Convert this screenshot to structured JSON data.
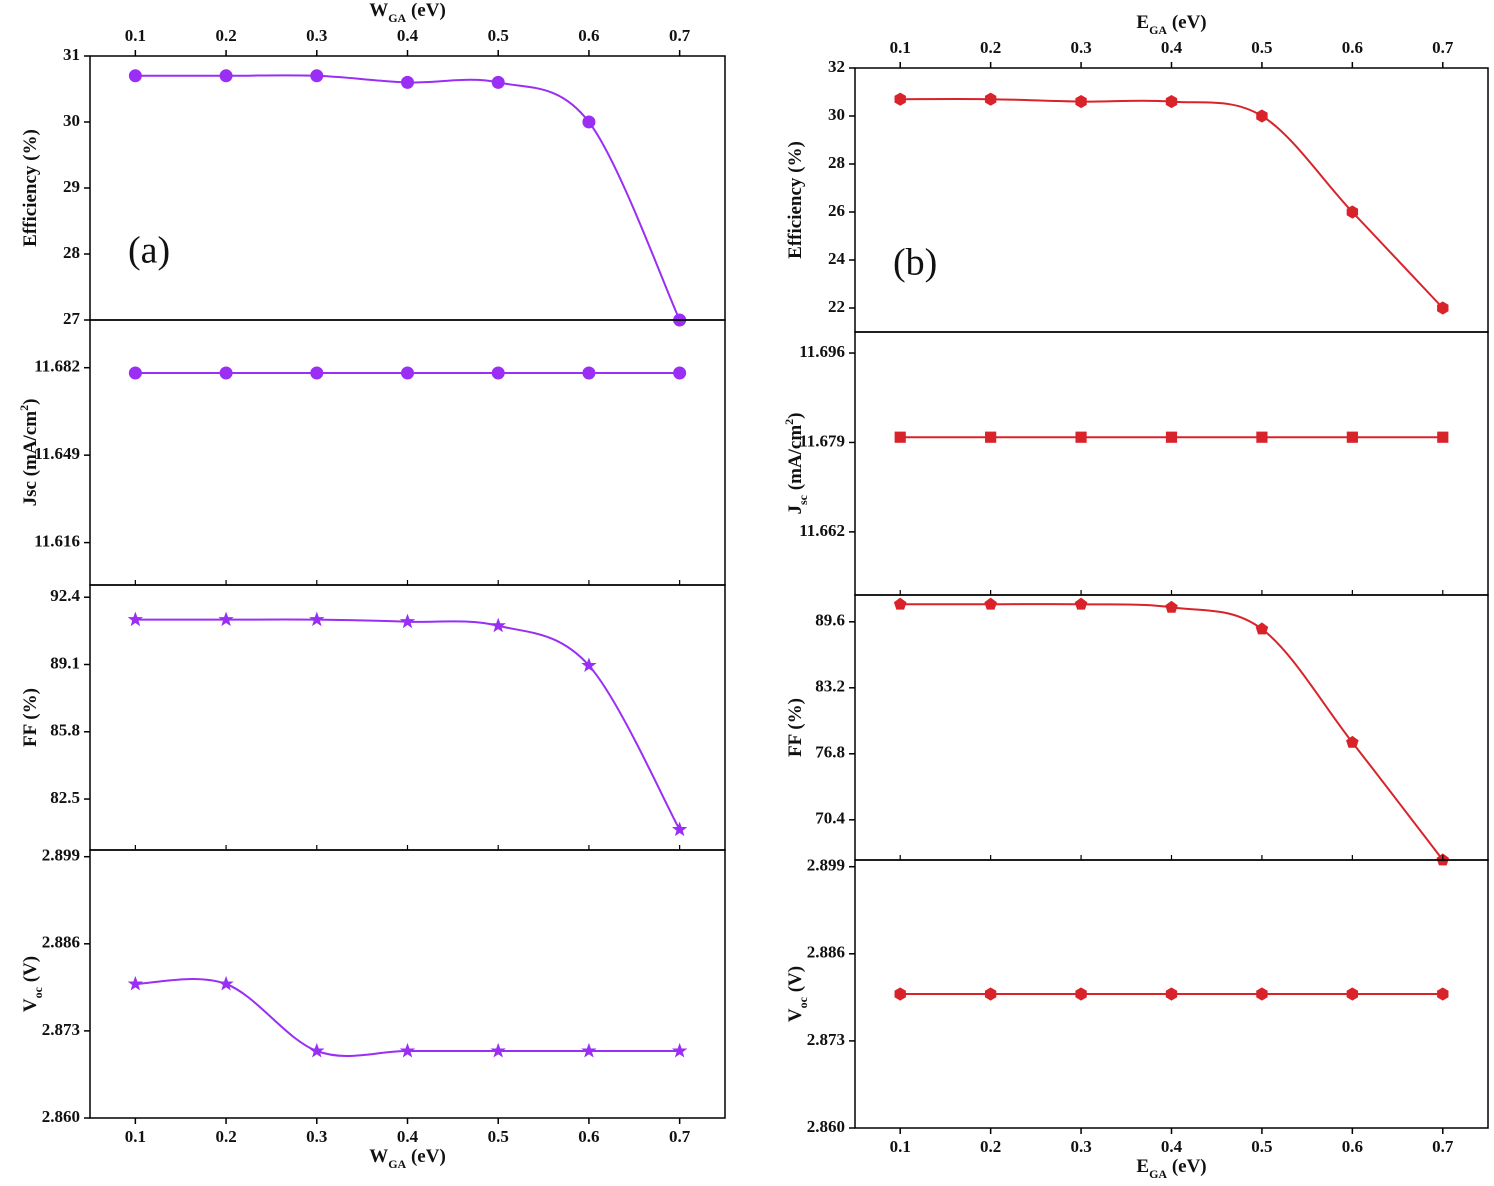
{
  "chart_data": [
    {
      "type": "line",
      "panel_label": "(a)",
      "top_xlabel": [
        {
          "text": "W"
        },
        {
          "text": "GA",
          "shift": "sub"
        },
        {
          "text": " (eV)"
        }
      ],
      "xtick_labels": "top",
      "ylabel": [
        {
          "text": "Efficiency (%)"
        }
      ],
      "x": [
        0.1,
        0.2,
        0.3,
        0.4,
        0.5,
        0.6,
        0.7
      ],
      "values": [
        30.7,
        30.7,
        30.7,
        30.6,
        30.6,
        30.0,
        27.0
      ],
      "color": "#9a2ef5",
      "marker": "circle",
      "xlim": [
        0.05,
        0.75
      ],
      "xticks": [
        0.1,
        0.2,
        0.3,
        0.4,
        0.5,
        0.6,
        0.7
      ],
      "ylim": [
        27,
        31
      ],
      "yticks": [
        27,
        28,
        29,
        30,
        31
      ]
    },
    {
      "type": "line",
      "xtick_labels": "none",
      "ylabel": [
        {
          "text": "Jsc (mA/cm"
        },
        {
          "text": "2",
          "shift": "super"
        },
        {
          "text": ")"
        }
      ],
      "x": [
        0.1,
        0.2,
        0.3,
        0.4,
        0.5,
        0.6,
        0.7
      ],
      "values": [
        11.68,
        11.68,
        11.68,
        11.68,
        11.68,
        11.68,
        11.68
      ],
      "color": "#9a2ef5",
      "marker": "circle",
      "xlim": [
        0.05,
        0.75
      ],
      "xticks": [
        0.1,
        0.2,
        0.3,
        0.4,
        0.5,
        0.6,
        0.7
      ],
      "ylim": [
        11.6,
        11.7
      ],
      "yticks": [
        11.616,
        11.649,
        11.682
      ]
    },
    {
      "type": "line",
      "xtick_labels": "none",
      "ylabel": [
        {
          "text": "FF (%)"
        }
      ],
      "x": [
        0.1,
        0.2,
        0.3,
        0.4,
        0.5,
        0.6,
        0.7
      ],
      "values": [
        91.3,
        91.3,
        91.3,
        91.2,
        91.0,
        89.05,
        81.0
      ],
      "color": "#9a2ef5",
      "marker": "star",
      "xlim": [
        0.05,
        0.75
      ],
      "xticks": [
        0.1,
        0.2,
        0.3,
        0.4,
        0.5,
        0.6,
        0.7
      ],
      "ylim": [
        80,
        93
      ],
      "yticks": [
        82.5,
        85.8,
        89.1,
        92.4
      ]
    },
    {
      "type": "line",
      "xtick_labels": "bottom",
      "xlabel": [
        {
          "text": "W"
        },
        {
          "text": "GA",
          "shift": "sub"
        },
        {
          "text": " (eV)"
        }
      ],
      "ylabel": [
        {
          "text": "V"
        },
        {
          "text": "oc",
          "shift": "sub"
        },
        {
          "text": " (V)"
        }
      ],
      "x": [
        0.1,
        0.2,
        0.3,
        0.4,
        0.5,
        0.6,
        0.7
      ],
      "values": [
        2.88,
        2.88,
        2.87,
        2.87,
        2.87,
        2.87,
        2.87
      ],
      "color": "#9a2ef5",
      "marker": "star",
      "xlim": [
        0.05,
        0.75
      ],
      "xticks": [
        0.1,
        0.2,
        0.3,
        0.4,
        0.5,
        0.6,
        0.7
      ],
      "ylim": [
        2.86,
        2.9
      ],
      "yticks": [
        {
          "value": 2.86,
          "label": "2.860"
        },
        2.873,
        2.886,
        2.899
      ]
    },
    {
      "type": "line",
      "panel_label": "(b)",
      "top_xlabel": [
        {
          "text": "E"
        },
        {
          "text": "GA",
          "shift": "sub"
        },
        {
          "text": " (eV)"
        }
      ],
      "xtick_labels": "top",
      "ylabel": [
        {
          "text": "Efficiency (%)"
        }
      ],
      "x": [
        0.1,
        0.2,
        0.3,
        0.4,
        0.5,
        0.6,
        0.7
      ],
      "values": [
        30.7,
        30.7,
        30.6,
        30.6,
        30.0,
        26.0,
        22.0
      ],
      "color": "#d9232b",
      "marker": "hexagon",
      "xlim": [
        0.05,
        0.75
      ],
      "xticks": [
        0.1,
        0.2,
        0.3,
        0.4,
        0.5,
        0.6,
        0.7
      ],
      "ylim": [
        21,
        32
      ],
      "yticks": [
        22,
        24,
        26,
        28,
        30,
        32
      ]
    },
    {
      "type": "line",
      "xtick_labels": "none",
      "ylabel": [
        {
          "text": "J"
        },
        {
          "text": "sc",
          "shift": "sub"
        },
        {
          "text": " (mA/cm"
        },
        {
          "text": "2",
          "shift": "super"
        },
        {
          "text": ")"
        }
      ],
      "x": [
        0.1,
        0.2,
        0.3,
        0.4,
        0.5,
        0.6,
        0.7
      ],
      "values": [
        11.68,
        11.68,
        11.68,
        11.68,
        11.68,
        11.68,
        11.68
      ],
      "color": "#d9232b",
      "marker": "square",
      "xlim": [
        0.05,
        0.75
      ],
      "xticks": [
        0.1,
        0.2,
        0.3,
        0.4,
        0.5,
        0.6,
        0.7
      ],
      "ylim": [
        11.65,
        11.7
      ],
      "yticks": [
        11.662,
        11.679,
        11.696
      ]
    },
    {
      "type": "line",
      "xtick_labels": "none",
      "ylabel": [
        {
          "text": "FF (%)"
        }
      ],
      "x": [
        0.1,
        0.2,
        0.3,
        0.4,
        0.5,
        0.6,
        0.7
      ],
      "values": [
        91.3,
        91.3,
        91.3,
        91.0,
        88.9,
        77.9,
        66.5
      ],
      "color": "#d9232b",
      "marker": "pentagon",
      "xlim": [
        0.05,
        0.75
      ],
      "xticks": [
        0.1,
        0.2,
        0.3,
        0.4,
        0.5,
        0.6,
        0.7
      ],
      "ylim": [
        66.5,
        92.2
      ],
      "yticks": [
        70.4,
        76.8,
        83.2,
        89.6
      ]
    },
    {
      "type": "line",
      "xtick_labels": "bottom",
      "xlabel": [
        {
          "text": "E"
        },
        {
          "text": "GA",
          "shift": "sub"
        },
        {
          "text": " (eV)"
        }
      ],
      "ylabel": [
        {
          "text": "V"
        },
        {
          "text": "oc",
          "shift": "sub"
        },
        {
          "text": " (V)"
        }
      ],
      "x": [
        0.1,
        0.2,
        0.3,
        0.4,
        0.5,
        0.6,
        0.7
      ],
      "values": [
        2.88,
        2.88,
        2.88,
        2.88,
        2.88,
        2.88,
        2.88
      ],
      "color": "#d9232b",
      "marker": "hexagon",
      "xlim": [
        0.05,
        0.75
      ],
      "xticks": [
        0.1,
        0.2,
        0.3,
        0.4,
        0.5,
        0.6,
        0.7
      ],
      "ylim": [
        2.86,
        2.9
      ],
      "yticks": [
        {
          "value": 2.86,
          "label": "2.860"
        },
        2.873,
        2.886,
        2.899
      ]
    }
  ]
}
